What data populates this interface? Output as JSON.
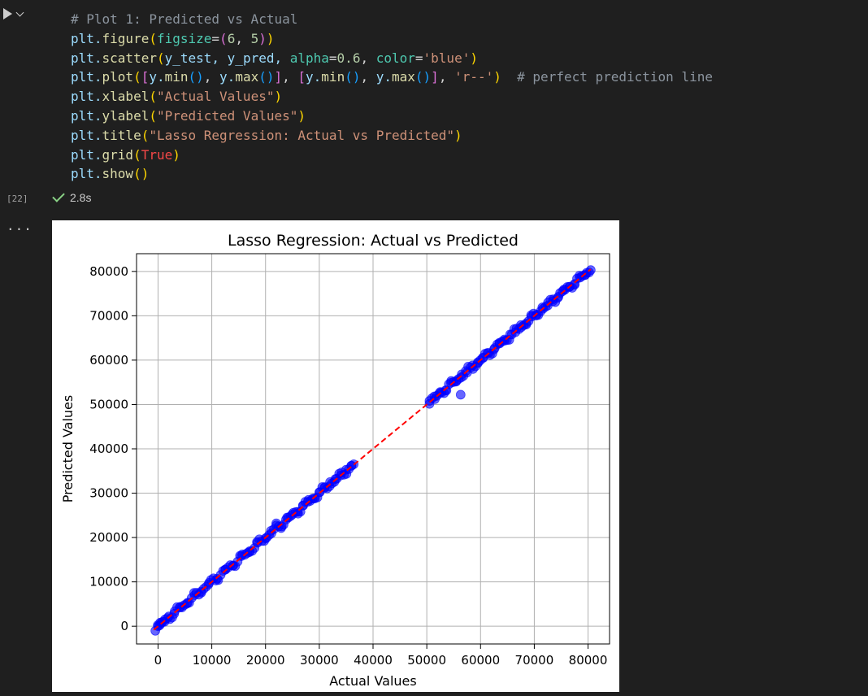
{
  "cell": {
    "execution_count": "[22]",
    "duration": "2.8s",
    "more_label": "...",
    "code_lines": [
      [
        {
          "t": "# Plot 1: Predicted vs Actual",
          "c": "c-com"
        }
      ],
      [
        {
          "t": "plt.",
          "c": "c-id"
        },
        {
          "t": "figure",
          "c": "c-fn"
        },
        {
          "t": "(",
          "c": "c-br1"
        },
        {
          "t": "figsize",
          "c": "c-param"
        },
        {
          "t": "=",
          "c": "c-op"
        },
        {
          "t": "(",
          "c": "c-br2"
        },
        {
          "t": "6",
          "c": "c-num"
        },
        {
          "t": ", ",
          "c": "c-op"
        },
        {
          "t": "5",
          "c": "c-num"
        },
        {
          "t": ")",
          "c": "c-br2"
        },
        {
          "t": ")",
          "c": "c-br1"
        }
      ],
      [
        {
          "t": "plt.",
          "c": "c-id"
        },
        {
          "t": "scatter",
          "c": "c-fn"
        },
        {
          "t": "(",
          "c": "c-br1"
        },
        {
          "t": "y_test, y_pred, ",
          "c": "c-id"
        },
        {
          "t": "alpha",
          "c": "c-param"
        },
        {
          "t": "=",
          "c": "c-op"
        },
        {
          "t": "0.6",
          "c": "c-num"
        },
        {
          "t": ", ",
          "c": "c-op"
        },
        {
          "t": "color",
          "c": "c-param"
        },
        {
          "t": "=",
          "c": "c-op"
        },
        {
          "t": "'blue'",
          "c": "c-str"
        },
        {
          "t": ")",
          "c": "c-br1"
        }
      ],
      [
        {
          "t": "plt.",
          "c": "c-id"
        },
        {
          "t": "plot",
          "c": "c-fn"
        },
        {
          "t": "(",
          "c": "c-br1"
        },
        {
          "t": "[",
          "c": "c-br2"
        },
        {
          "t": "y.",
          "c": "c-id"
        },
        {
          "t": "min",
          "c": "c-fn"
        },
        {
          "t": "()",
          "c": "c-br3"
        },
        {
          "t": ", ",
          "c": "c-op"
        },
        {
          "t": "y.",
          "c": "c-id"
        },
        {
          "t": "max",
          "c": "c-fn"
        },
        {
          "t": "()",
          "c": "c-br3"
        },
        {
          "t": "]",
          "c": "c-br2"
        },
        {
          "t": ", ",
          "c": "c-op"
        },
        {
          "t": "[",
          "c": "c-br2"
        },
        {
          "t": "y.",
          "c": "c-id"
        },
        {
          "t": "min",
          "c": "c-fn"
        },
        {
          "t": "()",
          "c": "c-br3"
        },
        {
          "t": ", ",
          "c": "c-op"
        },
        {
          "t": "y.",
          "c": "c-id"
        },
        {
          "t": "max",
          "c": "c-fn"
        },
        {
          "t": "()",
          "c": "c-br3"
        },
        {
          "t": "]",
          "c": "c-br2"
        },
        {
          "t": ", ",
          "c": "c-op"
        },
        {
          "t": "'r--'",
          "c": "c-str"
        },
        {
          "t": ")",
          "c": "c-br1"
        },
        {
          "t": "  # perfect prediction line",
          "c": "c-com"
        }
      ],
      [
        {
          "t": "plt.",
          "c": "c-id"
        },
        {
          "t": "xlabel",
          "c": "c-fn"
        },
        {
          "t": "(",
          "c": "c-br1"
        },
        {
          "t": "\"Actual Values\"",
          "c": "c-str"
        },
        {
          "t": ")",
          "c": "c-br1"
        }
      ],
      [
        {
          "t": "plt.",
          "c": "c-id"
        },
        {
          "t": "ylabel",
          "c": "c-fn"
        },
        {
          "t": "(",
          "c": "c-br1"
        },
        {
          "t": "\"Predicted Values\"",
          "c": "c-str"
        },
        {
          "t": ")",
          "c": "c-br1"
        }
      ],
      [
        {
          "t": "plt.",
          "c": "c-id"
        },
        {
          "t": "title",
          "c": "c-fn"
        },
        {
          "t": "(",
          "c": "c-br1"
        },
        {
          "t": "\"Lasso Regression: Actual vs Predicted\"",
          "c": "c-str"
        },
        {
          "t": ")",
          "c": "c-br1"
        }
      ],
      [
        {
          "t": "plt.",
          "c": "c-id"
        },
        {
          "t": "grid",
          "c": "c-fn"
        },
        {
          "t": "(",
          "c": "c-br1"
        },
        {
          "t": "True",
          "c": "c-kw"
        },
        {
          "t": ")",
          "c": "c-br1"
        }
      ],
      [
        {
          "t": "plt.",
          "c": "c-id"
        },
        {
          "t": "show",
          "c": "c-fn"
        },
        {
          "t": "()",
          "c": "c-br1"
        }
      ]
    ]
  },
  "colors": {
    "points": "#0000ff",
    "line": "#ff0000",
    "grid": "#b0b0b0",
    "check": "#89d185"
  },
  "icons": {
    "run": "play-icon",
    "menu": "chevron-down-icon",
    "status": "check-icon"
  },
  "chart_data": {
    "type": "scatter",
    "title": "Lasso Regression: Actual vs Predicted",
    "xlabel": "Actual Values",
    "ylabel": "Predicted Values",
    "xlim": [
      -4000,
      84000
    ],
    "ylim": [
      -4000,
      84000
    ],
    "xticks": [
      0,
      10000,
      20000,
      30000,
      40000,
      50000,
      60000,
      70000,
      80000
    ],
    "yticks": [
      0,
      10000,
      20000,
      30000,
      40000,
      50000,
      60000,
      70000,
      80000
    ],
    "grid": true,
    "series": [
      {
        "marker_alpha": 0.6,
        "x": [
          0,
          300,
          600,
          1200,
          2000,
          3000,
          4200,
          5500,
          6800,
          8000,
          9500,
          11000,
          12500,
          14000,
          15500,
          17000,
          18500,
          20000,
          21000,
          22000,
          23000,
          24000,
          25000,
          26000,
          27000,
          28000,
          29000,
          30000,
          31000,
          32000,
          33000,
          34000,
          35000,
          36000,
          50500,
          51500,
          52500,
          53500,
          54500,
          55500,
          56500,
          57500,
          58500,
          59500,
          60500,
          61500,
          62500,
          63500,
          64500,
          65500,
          66500,
          67500,
          68500,
          69500,
          70500,
          71500,
          72500,
          73500,
          74500,
          75500,
          76500,
          77500,
          78500,
          79500,
          80500,
          56300
        ],
        "y": [
          0,
          200,
          700,
          1000,
          2200,
          2800,
          4400,
          5300,
          7000,
          7800,
          9800,
          10700,
          12800,
          13700,
          15800,
          16700,
          18800,
          19800,
          21500,
          23200,
          22500,
          24500,
          25200,
          25800,
          27200,
          28500,
          28800,
          30200,
          31200,
          32500,
          33200,
          34000,
          35300,
          36200,
          50800,
          51200,
          52800,
          53200,
          54900,
          55300,
          56800,
          57200,
          58800,
          59300,
          60500,
          61600,
          62400,
          63900,
          64400,
          65800,
          66300,
          67900,
          68300,
          69800,
          70300,
          71900,
          72300,
          73700,
          74300,
          75900,
          76500,
          77200,
          78600,
          79200,
          80300,
          52200
        ]
      }
    ],
    "reference_line": {
      "x": [
        -800,
        80500
      ],
      "y": [
        -800,
        80500
      ],
      "style": "dashed"
    }
  }
}
